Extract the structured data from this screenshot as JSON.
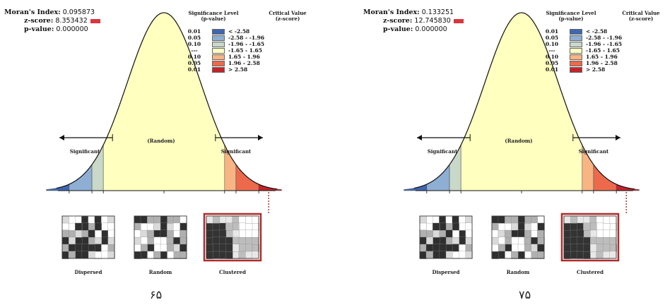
{
  "panels": [
    {
      "moran_label": "Moran's Index:",
      "moran_value": "0.095873",
      "z_label": "z-score:",
      "z_value": "8.353432",
      "p_label": "p-value:",
      "p_value": "0.000000",
      "page_number": "۶۵"
    },
    {
      "moran_label": "Moran's Index:",
      "moran_value": "0.133251",
      "z_label": "z-score:",
      "z_value": "12.745830",
      "p_label": "p-value:",
      "p_value": "0.000000",
      "page_number": "۷۵"
    }
  ],
  "legend": {
    "significance_header": "Significance Level\n(p-value)",
    "critical_header": "Critical Value\n(z-score)",
    "rows": [
      {
        "p": "0.01",
        "z": "< -2.58",
        "color": "#3f67b1"
      },
      {
        "p": "0.05",
        "z": "-2.58 - -1.96",
        "color": "#8eaed4"
      },
      {
        "p": "0.10",
        "z": "-1.96 - -1.65",
        "color": "#c9d8c9"
      },
      {
        "p": "---",
        "z": "-1.65 - 1.65",
        "color": "#ffffc0"
      },
      {
        "p": "0.10",
        "z": "1.65 - 1.96",
        "color": "#f8b483"
      },
      {
        "p": "0.05",
        "z": "1.96 - 2.58",
        "color": "#ec6a4b"
      },
      {
        "p": "0.01",
        "z": "> 2.58",
        "color": "#c4232b"
      }
    ]
  },
  "curve": {
    "random_label": "(Random)",
    "significant_label": "Significant"
  },
  "thumbnails": [
    "Dispersed",
    "Random",
    "Clustered"
  ],
  "colors": {
    "z_swatch": "#d9363e",
    "highlight_border": "#b32a2a",
    "curve_fill": "#ffffc0"
  }
}
